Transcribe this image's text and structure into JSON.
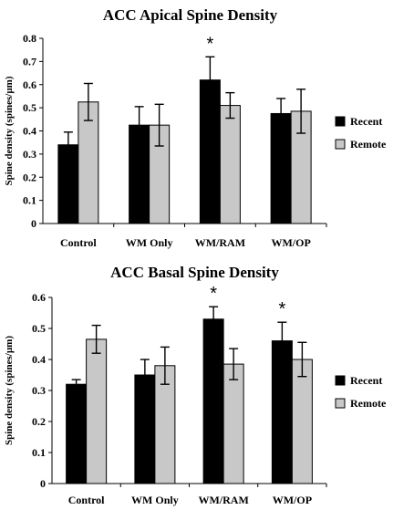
{
  "chart_data": [
    {
      "type": "bar",
      "title": "ACC Apical Spine Density",
      "ylabel": "Spine density (spines/µm)",
      "ylim": [
        0,
        0.8
      ],
      "yticks": [
        "0",
        "0.1",
        "0.2",
        "0.3",
        "0.4",
        "0.5",
        "0.6",
        "0.7",
        "0.8"
      ],
      "categories": [
        "Control",
        "WM Only",
        "WM/RAM",
        "WM/OP"
      ],
      "series": [
        {
          "name": "Recent",
          "color": "#000000",
          "values": [
            0.34,
            0.425,
            0.62,
            0.475
          ],
          "errors": [
            0.055,
            0.08,
            0.1,
            0.065
          ]
        },
        {
          "name": "Remote",
          "color": "#c8c8c8",
          "values": [
            0.525,
            0.425,
            0.51,
            0.485
          ],
          "errors": [
            0.08,
            0.09,
            0.055,
            0.095
          ]
        }
      ],
      "annotations": [
        {
          "category": "WM/RAM",
          "series": "Recent",
          "text": "*"
        }
      ],
      "legend_position": "right"
    },
    {
      "type": "bar",
      "title": "ACC Basal Spine Density",
      "ylabel": "Spine density (spines/µm)",
      "ylim": [
        0,
        0.6
      ],
      "yticks": [
        "0",
        "0.1",
        "0.2",
        "0.3",
        "0.4",
        "0.5",
        "0.6"
      ],
      "categories": [
        "Control",
        "WM Only",
        "WM/RAM",
        "WM/OP"
      ],
      "series": [
        {
          "name": "Recent",
          "color": "#000000",
          "values": [
            0.32,
            0.35,
            0.53,
            0.46
          ],
          "errors": [
            0.015,
            0.05,
            0.04,
            0.06
          ]
        },
        {
          "name": "Remote",
          "color": "#c8c8c8",
          "values": [
            0.465,
            0.38,
            0.385,
            0.4
          ],
          "errors": [
            0.045,
            0.06,
            0.05,
            0.055
          ]
        }
      ],
      "annotations": [
        {
          "category": "WM/RAM",
          "series": "Recent",
          "text": "*"
        },
        {
          "category": "WM/OP",
          "series": "Recent",
          "text": "*"
        }
      ],
      "legend_position": "right"
    }
  ]
}
